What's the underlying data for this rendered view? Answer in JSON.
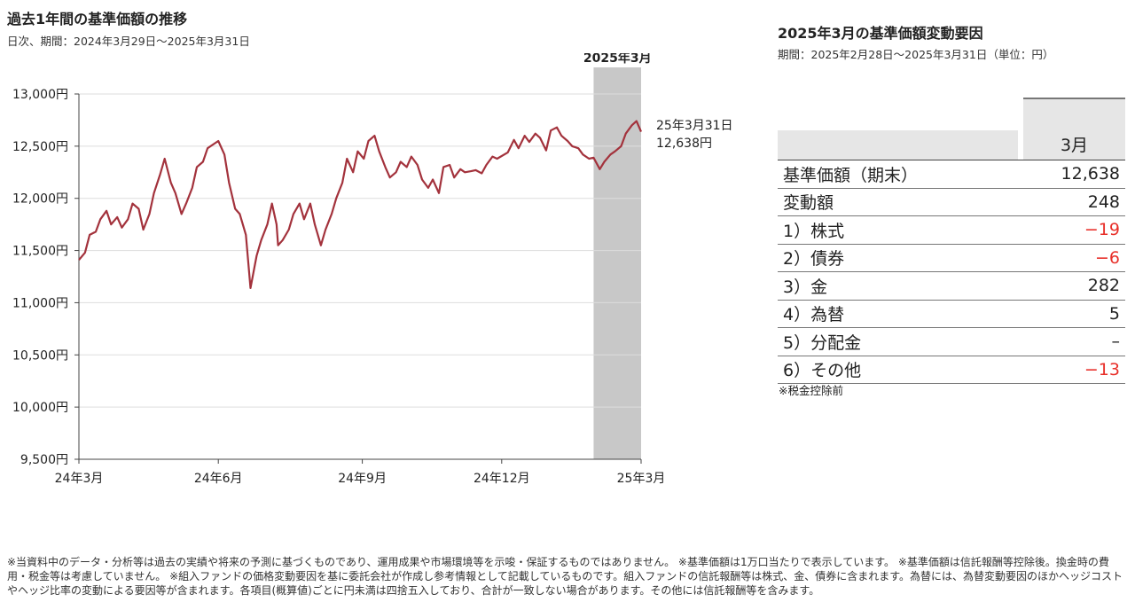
{
  "left": {
    "title": "過去1年間の基準価額の推移",
    "subtitle": "日次、期間：2024年3月29日～2025年3月31日"
  },
  "right": {
    "title": "2025年3月の基準価額変動要因",
    "subtitle": "期間：2025年2月28日～2025年3月31日（単位：円）",
    "column_header": "3月",
    "rows": [
      {
        "label": "基準価額（期末）",
        "value": "12,638",
        "neg": false
      },
      {
        "label": "変動額",
        "value": "248",
        "neg": false
      },
      {
        "label": "1）株式",
        "value": "−19",
        "neg": true
      },
      {
        "label": "2）債券",
        "value": "−6",
        "neg": true
      },
      {
        "label": "3）金",
        "value": "282",
        "neg": false
      },
      {
        "label": "4）為替",
        "value": "5",
        "neg": false
      },
      {
        "label": "5）分配金",
        "value": "–",
        "neg": false
      },
      {
        "label": "6）その他",
        "value": "−13",
        "neg": true
      }
    ],
    "note": "※税金控除前"
  },
  "footer": "※当資料中のデータ・分析等は過去の実績や将来の予測に基づくものであり、運用成果や市場環境等を示唆・保証するものではありません。 ※基準価額は1万口当たりで表示しています。 ※基準価額は信託報酬等控除後。換金時の費用・税金等は考慮していません。 ※組入ファンドの価格変動要因を基に委託会社が作成し参考情報として記載しているものです。組入ファンドの信託報酬等は株式、金、債券に含まれます。為替には、為替変動要因のほかヘッジコストやヘッジ比率の変動による要因等が含まれます。各項目(概算値)ごとに円未満は四捨五入しており、合計が一致しない場合があります。その他には信託報酬等を含みます。",
  "colors": {
    "line": "#a3323c",
    "highlight": "#c8c8c8",
    "negative": "#e8302a",
    "gridline": "#dddddd"
  },
  "chart_data": {
    "type": "line",
    "title": "過去1年間の基準価額の推移",
    "x_ticks": [
      "24年3月",
      "24年6月",
      "24年9月",
      "24年12月",
      "25年3月"
    ],
    "y_ticks": [
      "9,500円",
      "10,000円",
      "10,500円",
      "11,000円",
      "11,500円",
      "12,000円",
      "12,500円",
      "13,000円"
    ],
    "ylim": [
      9500,
      13000
    ],
    "xlim": [
      "2024-03-29",
      "2025-03-31"
    ],
    "grid": true,
    "highlight_band": {
      "label": "2025年3月",
      "from": "2025-02-28",
      "to": "2025-03-31"
    },
    "end_annotation": {
      "date": "25年3月31日",
      "value": "12,638円"
    },
    "series": [
      {
        "x": [
          "2024-03-29",
          "2024-04-02",
          "2024-04-05",
          "2024-04-09",
          "2024-04-12",
          "2024-04-16",
          "2024-04-19",
          "2024-04-23",
          "2024-04-26",
          "2024-04-30",
          "2024-05-03",
          "2024-05-07",
          "2024-05-10",
          "2024-05-14",
          "2024-05-17",
          "2024-05-21",
          "2024-05-24",
          "2024-05-28",
          "2024-05-31",
          "2024-06-04",
          "2024-06-07",
          "2024-06-11",
          "2024-06-14",
          "2024-06-18",
          "2024-06-21",
          "2024-06-25",
          "2024-06-28",
          "2024-07-02",
          "2024-07-05",
          "2024-07-09",
          "2024-07-12",
          "2024-07-16",
          "2024-07-19",
          "2024-07-23",
          "2024-07-26",
          "2024-07-30",
          "2024-08-02",
          "2024-08-05",
          "2024-08-06",
          "2024-08-09",
          "2024-08-13",
          "2024-08-16",
          "2024-08-20",
          "2024-08-23",
          "2024-08-27",
          "2024-08-30",
          "2024-09-03",
          "2024-09-06",
          "2024-09-10",
          "2024-09-13",
          "2024-09-17",
          "2024-09-20",
          "2024-09-24",
          "2024-09-27",
          "2024-10-01",
          "2024-10-04",
          "2024-10-08",
          "2024-10-11",
          "2024-10-15",
          "2024-10-18",
          "2024-10-22",
          "2024-10-25",
          "2024-10-29",
          "2024-11-01",
          "2024-11-05",
          "2024-11-08",
          "2024-11-12",
          "2024-11-15",
          "2024-11-19",
          "2024-11-22",
          "2024-11-26",
          "2024-11-29",
          "2024-12-03",
          "2024-12-06",
          "2024-12-10",
          "2024-12-13",
          "2024-12-17",
          "2024-12-20",
          "2024-12-24",
          "2024-12-27",
          "2025-01-03",
          "2025-01-07",
          "2025-01-10",
          "2025-01-14",
          "2025-01-17",
          "2025-01-21",
          "2025-01-24",
          "2025-01-28",
          "2025-01-31",
          "2025-02-04",
          "2025-02-07",
          "2025-02-11",
          "2025-02-14",
          "2025-02-18",
          "2025-02-21",
          "2025-02-25",
          "2025-02-28",
          "2025-03-04",
          "2025-03-07",
          "2025-03-11",
          "2025-03-14",
          "2025-03-18",
          "2025-03-21",
          "2025-03-25",
          "2025-03-28",
          "2025-03-31"
        ],
        "y": [
          11410,
          11480,
          11650,
          11680,
          11800,
          11880,
          11750,
          11820,
          11720,
          11800,
          11950,
          11900,
          11700,
          11850,
          12050,
          12230,
          12380,
          12150,
          12050,
          11850,
          11950,
          12100,
          12300,
          12350,
          12480,
          12520,
          12550,
          12420,
          12150,
          11900,
          11850,
          11650,
          11140,
          11450,
          11600,
          11750,
          11950,
          11750,
          11550,
          11600,
          11700,
          11850,
          11950,
          11800,
          11950,
          11750,
          11550,
          11700,
          11850,
          12000,
          12150,
          12380,
          12250,
          12450,
          12380,
          12550,
          12600,
          12450,
          12300,
          12200,
          12250,
          12350,
          12300,
          12400,
          12320,
          12180,
          12100,
          12180,
          12050,
          12300,
          12320,
          12200,
          12280,
          12250,
          12260,
          12270,
          12240,
          12320,
          12400,
          12380,
          12440,
          12560,
          12480,
          12600,
          12540,
          12620,
          12580,
          12460,
          12650,
          12680,
          12600,
          12550,
          12500,
          12480,
          12420,
          12380,
          12390,
          12280,
          12350,
          12420,
          12450,
          12500,
          12620,
          12700,
          12740,
          12638
        ]
      }
    ]
  }
}
